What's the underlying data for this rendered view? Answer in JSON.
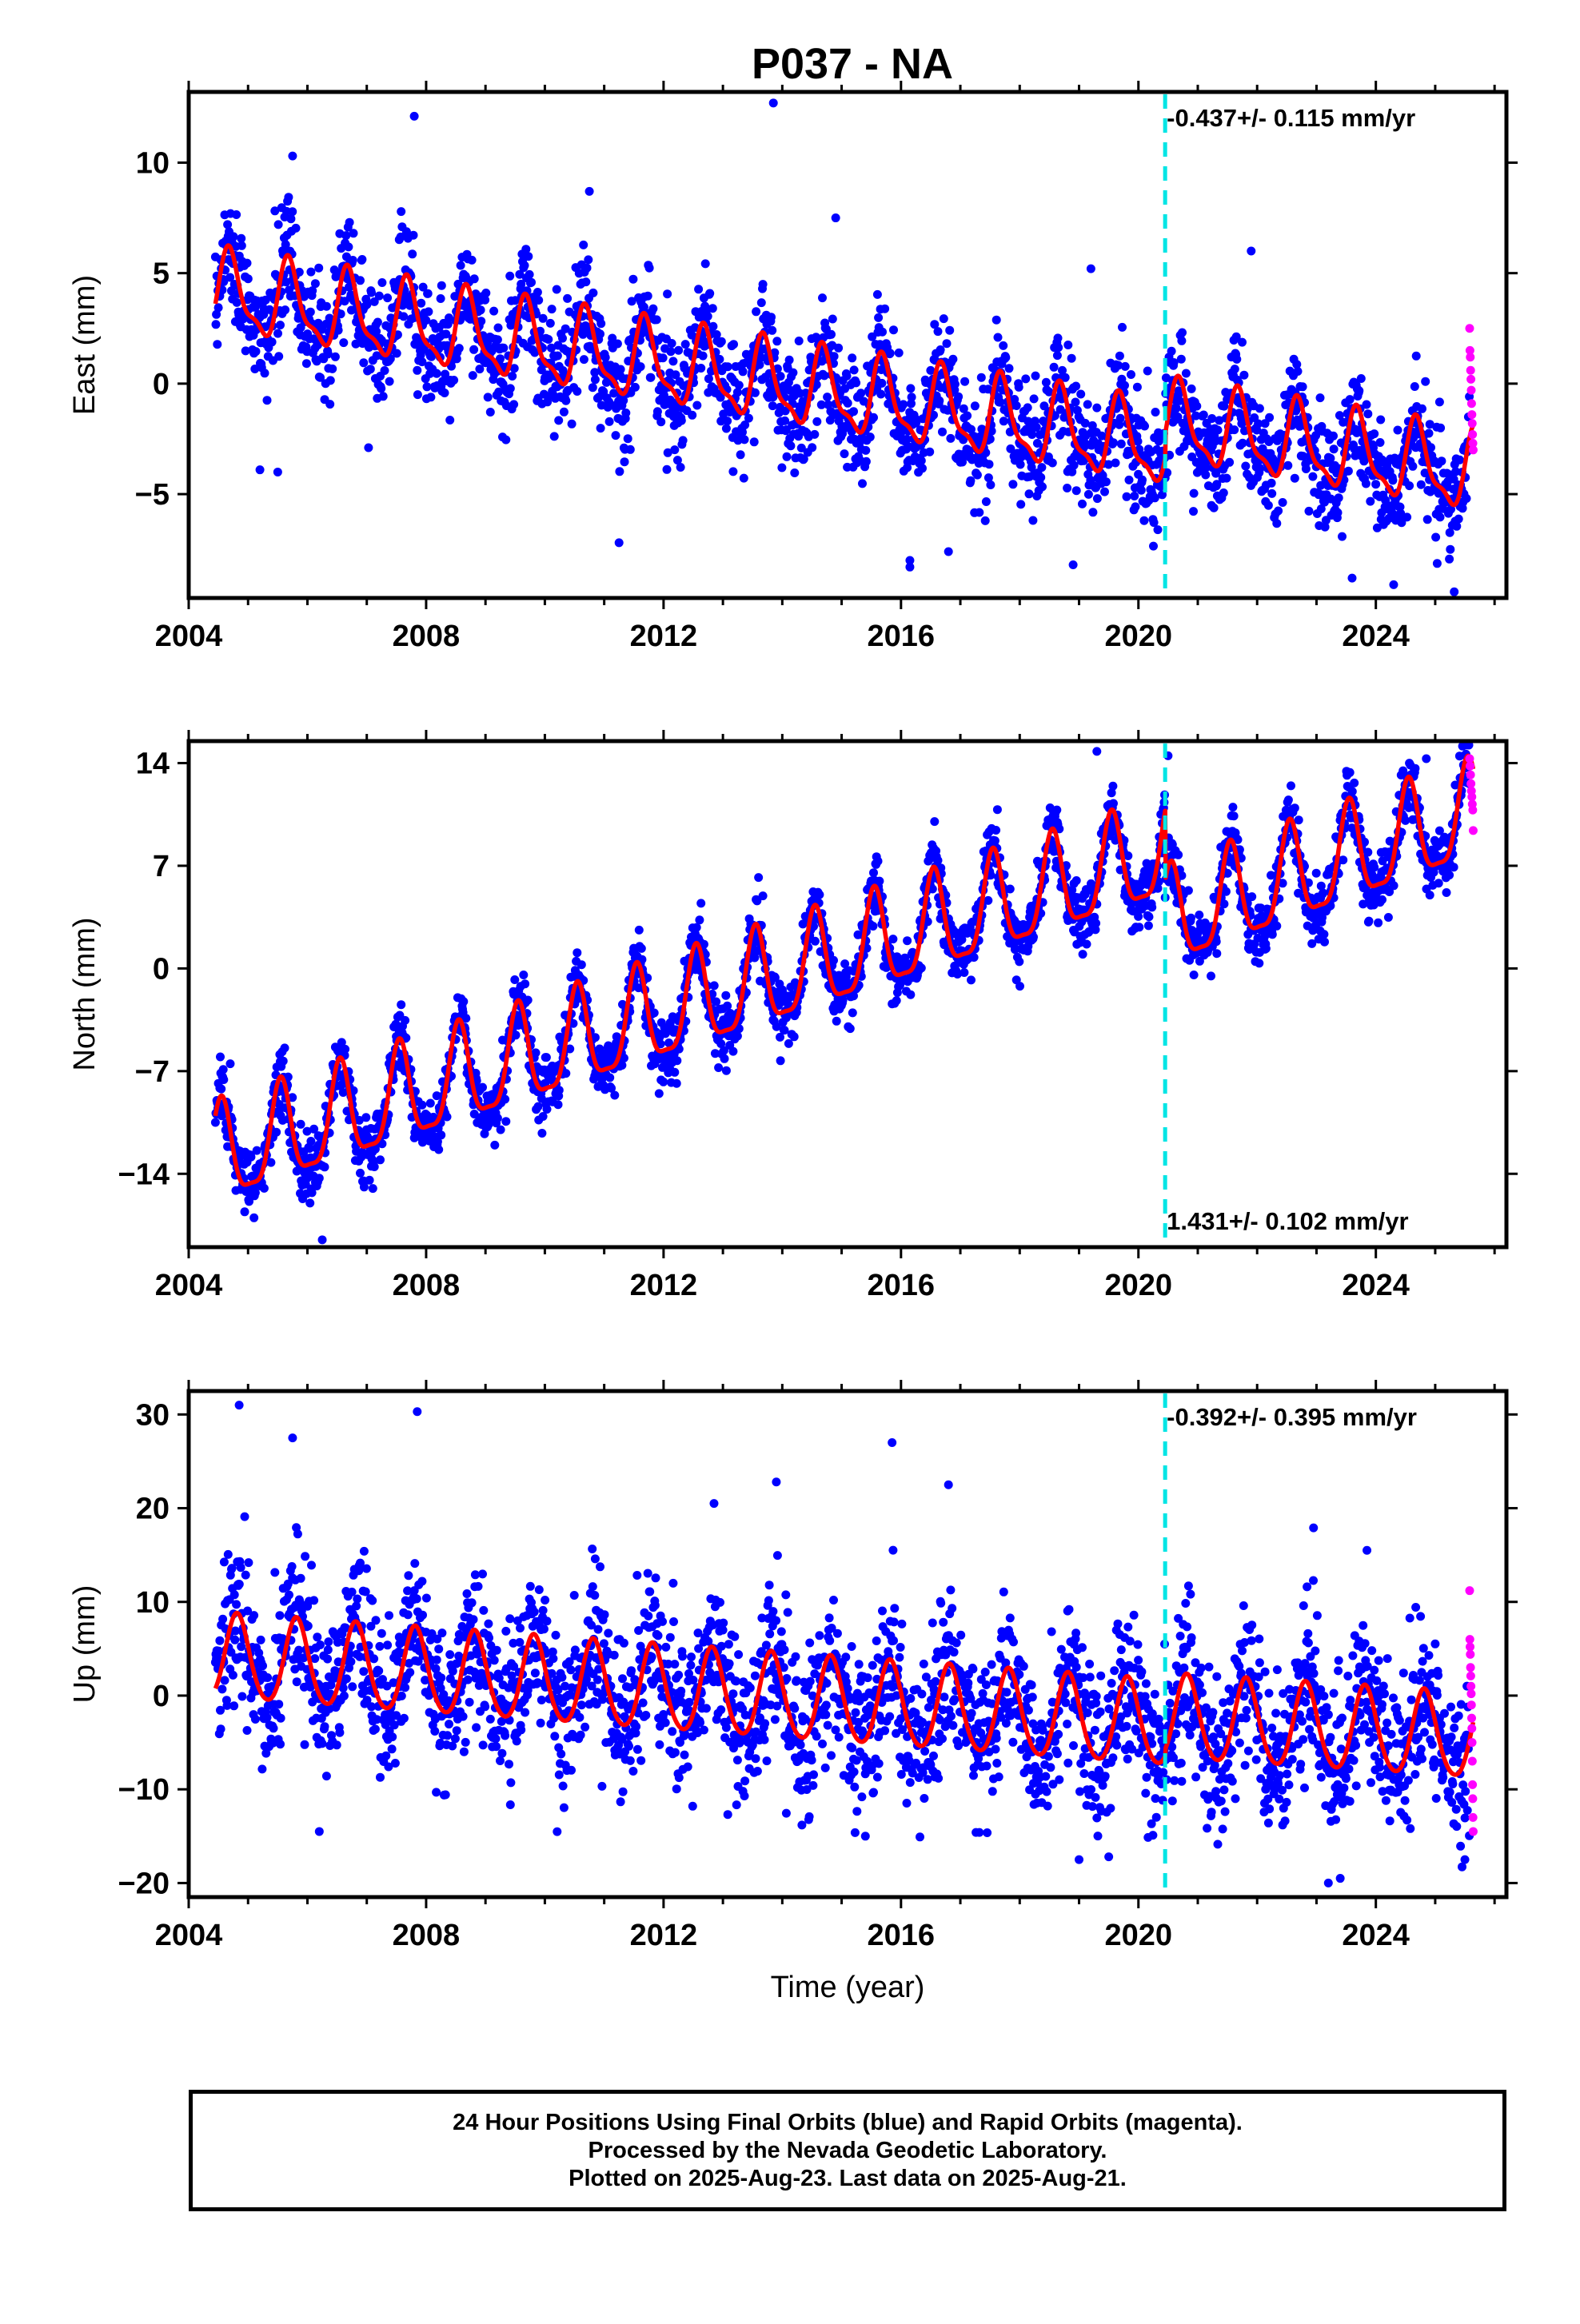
{
  "title": "P037 - NA",
  "xlabel": "Time (year)",
  "colors": {
    "final_orbits": "#0000ff",
    "rapid_orbits": "#ff00ff",
    "model": "#ff0000",
    "break_line": "#00e5e5"
  },
  "footer": {
    "line1": "24 Hour Positions Using Final Orbits (blue) and Rapid Orbits (magenta).",
    "line2": "Processed by the Nevada Geodetic Laboratory.",
    "line3": "Plotted on 2025-Aug-23. Last data on 2025-Aug-21."
  },
  "chart_data": [
    {
      "type": "scatter",
      "ylabel": "East (mm)",
      "rate_label": "-0.437+/- 0.115 mm/yr",
      "rate_label_position": "top",
      "xlim": [
        2004,
        2026.2
      ],
      "ylim": [
        -9.7,
        13.2
      ],
      "xticks": [
        2004,
        2008,
        2012,
        2016,
        2020,
        2024
      ],
      "yticks": [
        -5,
        0,
        5,
        10
      ],
      "break_year": 2020.45,
      "data_start": 2004.45,
      "data_end": 2025.64,
      "rapid_start": 2025.58,
      "model": {
        "trend_segments": [
          {
            "from": 2004.45,
            "to": 2020.45,
            "value_at_start": 4.1,
            "rate_mm_per_yr": -0.437
          },
          {
            "from": 2020.45,
            "to": 2025.64,
            "value_at_start": -1.8,
            "rate_mm_per_yr": -0.437
          }
        ],
        "annual_amplitude": 1.7,
        "annual_phase_peak": 0.7,
        "semiannual_amplitude": 0.6,
        "semiannual_phase_peak": 0.15
      },
      "scatter_sigma": 1.3,
      "outliers": [
        [
          2013.85,
          12.7
        ],
        [
          2007.8,
          12.1
        ],
        [
          2005.75,
          10.3
        ],
        [
          2010.75,
          8.7
        ],
        [
          2014.9,
          7.5
        ],
        [
          2019.2,
          5.2
        ],
        [
          2021.9,
          6.0
        ],
        [
          2011.25,
          -7.2
        ],
        [
          2016.15,
          -8.3
        ],
        [
          2016.15,
          -8.0
        ],
        [
          2016.8,
          -7.6
        ],
        [
          2018.9,
          -8.2
        ],
        [
          2024.3,
          -9.1
        ],
        [
          2023.6,
          -8.8
        ],
        [
          2005.2,
          -3.9
        ],
        [
          2005.5,
          -4.0
        ]
      ],
      "rapid_points": [
        2.5,
        1.5,
        1.2,
        0.6,
        0.2,
        -0.3,
        -0.9,
        -1.4,
        -1.8,
        -2.3,
        -2.7,
        -3.0
      ]
    },
    {
      "type": "scatter",
      "ylabel": "North (mm)",
      "rate_label": "1.431+/- 0.102 mm/yr",
      "rate_label_position": "bottom",
      "xlim": [
        2004,
        2026.2
      ],
      "ylim": [
        -19.0,
        15.5
      ],
      "xticks": [
        2004,
        2008,
        2012,
        2016,
        2020,
        2024
      ],
      "yticks": [
        -14,
        -7,
        0,
        7,
        14
      ],
      "break_year": 2020.45,
      "data_start": 2004.45,
      "data_end": 2025.64,
      "rapid_start": 2025.58,
      "model": {
        "trend_segments": [
          {
            "from": 2004.45,
            "to": 2020.45,
            "value_at_start": -13.0,
            "rate_mm_per_yr": 1.3
          },
          {
            "from": 2020.45,
            "to": 2025.64,
            "value_at_start": 3.0,
            "rate_mm_per_yr": 1.431
          }
        ],
        "annual_amplitude": 3.3,
        "annual_phase_peak": 0.55,
        "semiannual_amplitude": 0.9,
        "semiannual_phase_peak": 0.05
      },
      "scatter_sigma": 1.1,
      "outliers": [
        [
          2004.7,
          -6.5
        ],
        [
          2006.25,
          -18.5
        ],
        [
          2005.1,
          -17.0
        ],
        [
          2013.6,
          6.2
        ],
        [
          2019.3,
          14.8
        ],
        [
          2020.5,
          14.5
        ],
        [
          2024.85,
          14.3
        ]
      ],
      "rapid_points": [
        14.3,
        13.8,
        13.2,
        12.6,
        12.1,
        11.7,
        11.2,
        10.8,
        9.4
      ]
    },
    {
      "type": "scatter",
      "ylabel": "Up (mm)",
      "rate_label": "-0.392+/- 0.395 mm/yr",
      "rate_label_position": "top",
      "xlim": [
        2004,
        2026.2
      ],
      "ylim": [
        -21.5,
        32.5
      ],
      "xticks": [
        2004,
        2008,
        2012,
        2016,
        2020,
        2024
      ],
      "yticks": [
        -20,
        -10,
        0,
        10,
        20,
        30
      ],
      "break_year": 2020.45,
      "data_start": 2004.45,
      "data_end": 2025.64,
      "rapid_start": 2025.58,
      "model": {
        "trend_segments": [
          {
            "from": 2004.45,
            "to": 2020.45,
            "value_at_start": 4.0,
            "rate_mm_per_yr": -0.45
          },
          {
            "from": 2020.45,
            "to": 2025.64,
            "value_at_start": -2.5,
            "rate_mm_per_yr": -0.392
          }
        ],
        "annual_amplitude": 4.5,
        "annual_phase_peak": 0.82,
        "semiannual_amplitude": 0.5,
        "semiannual_phase_peak": 0.3
      },
      "scatter_sigma": 4.2,
      "outliers": [
        [
          2004.85,
          31.0
        ],
        [
          2005.75,
          27.5
        ],
        [
          2007.85,
          30.3
        ],
        [
          2015.85,
          27.0
        ],
        [
          2016.8,
          22.5
        ],
        [
          2013.9,
          22.8
        ],
        [
          2012.85,
          20.5
        ],
        [
          2022.95,
          17.9
        ],
        [
          2023.85,
          15.5
        ],
        [
          2019.0,
          -17.5
        ],
        [
          2019.5,
          -17.2
        ],
        [
          2023.2,
          -20.0
        ],
        [
          2023.4,
          -19.5
        ],
        [
          2025.5,
          -17.5
        ],
        [
          2006.2,
          -14.5
        ],
        [
          2015.4,
          -15.0
        ]
      ],
      "rapid_points": [
        11.2,
        6.0,
        5.2,
        4.4,
        3.0,
        2.1,
        1.0,
        0.2,
        -1.0,
        -2.4,
        -3.5,
        -5.0,
        -7.0,
        -9.5,
        -11.0,
        -13.0,
        -14.5
      ]
    }
  ]
}
